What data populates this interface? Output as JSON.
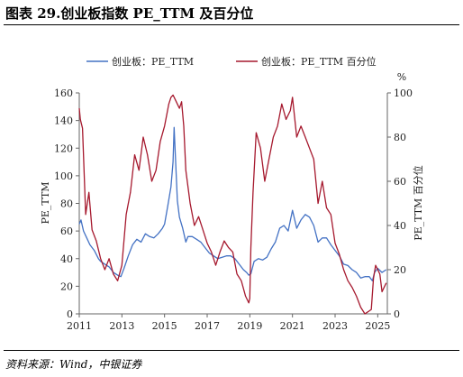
{
  "figure": {
    "title": "图表 29.创业板指数 PE_TTM 及百分位",
    "source": "资料来源：Wind，中银证券"
  },
  "chart_data": {
    "type": "line",
    "x_range": [
      2011.0,
      2025.45
    ],
    "x_ticks": [
      "2011",
      "2013",
      "2015",
      "2017",
      "2019",
      "2021",
      "2023",
      "2025"
    ],
    "x_tick_values": [
      2011,
      2013,
      2015,
      2017,
      2019,
      2021,
      2023,
      2025
    ],
    "y_left": {
      "label": "PE_TTM",
      "range": [
        0,
        160
      ],
      "ticks": [
        "0",
        "20",
        "40",
        "60",
        "80",
        "100",
        "120",
        "140",
        "160"
      ]
    },
    "y_right": {
      "label": "PE_TTM 百分位",
      "unit": "%",
      "range": [
        0,
        100
      ],
      "ticks": [
        "0",
        "20",
        "40",
        "60",
        "80",
        "100"
      ]
    },
    "grid": false,
    "legend_position": "top",
    "series": [
      {
        "name": "创业板：PE_TTM",
        "axis": "left",
        "color": "#4472c4",
        "x": [
          2011.0,
          2011.08,
          2011.2,
          2011.35,
          2011.5,
          2011.7,
          2011.9,
          2012.0,
          2012.2,
          2012.4,
          2012.6,
          2012.8,
          2012.95,
          2013.1,
          2013.3,
          2013.5,
          2013.7,
          2013.9,
          2014.1,
          2014.3,
          2014.5,
          2014.7,
          2014.9,
          2015.0,
          2015.15,
          2015.3,
          2015.4,
          2015.45,
          2015.52,
          2015.6,
          2015.7,
          2015.85,
          2016.0,
          2016.1,
          2016.3,
          2016.5,
          2016.7,
          2016.9,
          2017.1,
          2017.3,
          2017.5,
          2017.7,
          2017.9,
          2018.1,
          2018.3,
          2018.5,
          2018.7,
          2018.85,
          2018.95,
          2019.05,
          2019.2,
          2019.4,
          2019.6,
          2019.8,
          2020.0,
          2020.2,
          2020.4,
          2020.6,
          2020.8,
          2021.0,
          2021.2,
          2021.4,
          2021.6,
          2021.8,
          2022.0,
          2022.2,
          2022.4,
          2022.6,
          2022.8,
          2023.0,
          2023.2,
          2023.4,
          2023.6,
          2023.8,
          2024.0,
          2024.2,
          2024.4,
          2024.6,
          2024.75,
          2024.85,
          2025.0,
          2025.2,
          2025.4
        ],
        "values": [
          65,
          68,
          60,
          55,
          50,
          46,
          40,
          38,
          36,
          34,
          30,
          28,
          27,
          33,
          42,
          50,
          54,
          52,
          58,
          56,
          55,
          58,
          62,
          65,
          78,
          92,
          110,
          135,
          110,
          82,
          70,
          62,
          52,
          56,
          56,
          54,
          52,
          48,
          44,
          42,
          40,
          41,
          42,
          42,
          40,
          36,
          32,
          30,
          28,
          29,
          38,
          40,
          39,
          41,
          47,
          52,
          62,
          64,
          60,
          75,
          62,
          68,
          72,
          70,
          64,
          52,
          55,
          55,
          50,
          46,
          42,
          36,
          35,
          32,
          30,
          26,
          27,
          27,
          24,
          30,
          33,
          30,
          32
        ]
      },
      {
        "name": "创业板：PE_TTM 百分位",
        "axis": "right",
        "color": "#a6192e",
        "x": [
          2011.0,
          2011.05,
          2011.15,
          2011.3,
          2011.45,
          2011.6,
          2011.8,
          2012.0,
          2012.2,
          2012.4,
          2012.6,
          2012.8,
          2013.0,
          2013.2,
          2013.4,
          2013.6,
          2013.8,
          2014.0,
          2014.2,
          2014.4,
          2014.6,
          2014.8,
          2015.0,
          2015.2,
          2015.3,
          2015.4,
          2015.5,
          2015.6,
          2015.7,
          2015.8,
          2015.9,
          2016.0,
          2016.2,
          2016.4,
          2016.6,
          2016.8,
          2017.0,
          2017.2,
          2017.4,
          2017.6,
          2017.8,
          2018.0,
          2018.2,
          2018.4,
          2018.6,
          2018.8,
          2018.95,
          2019.0,
          2019.05,
          2019.15,
          2019.3,
          2019.5,
          2019.7,
          2019.9,
          2020.1,
          2020.3,
          2020.5,
          2020.7,
          2020.9,
          2021.0,
          2021.2,
          2021.4,
          2021.6,
          2021.8,
          2022.0,
          2022.2,
          2022.4,
          2022.6,
          2022.8,
          2023.0,
          2023.2,
          2023.4,
          2023.6,
          2023.8,
          2024.0,
          2024.2,
          2024.4,
          2024.55,
          2024.7,
          2024.8,
          2024.9,
          2025.0,
          2025.1,
          2025.2,
          2025.3,
          2025.4
        ],
        "values": [
          93,
          88,
          84,
          45,
          55,
          38,
          33,
          25,
          20,
          25,
          18,
          15,
          22,
          45,
          55,
          72,
          65,
          80,
          72,
          60,
          65,
          78,
          85,
          95,
          98,
          99,
          97,
          95,
          93,
          96,
          85,
          65,
          50,
          40,
          44,
          38,
          32,
          28,
          22,
          28,
          33,
          30,
          28,
          18,
          15,
          8,
          5,
          7,
          30,
          55,
          82,
          75,
          60,
          70,
          80,
          85,
          95,
          88,
          92,
          98,
          80,
          85,
          80,
          75,
          70,
          50,
          60,
          48,
          45,
          32,
          27,
          20,
          15,
          12,
          8,
          3,
          0,
          1,
          2,
          16,
          22,
          20,
          18,
          10,
          12,
          14
        ]
      }
    ]
  }
}
